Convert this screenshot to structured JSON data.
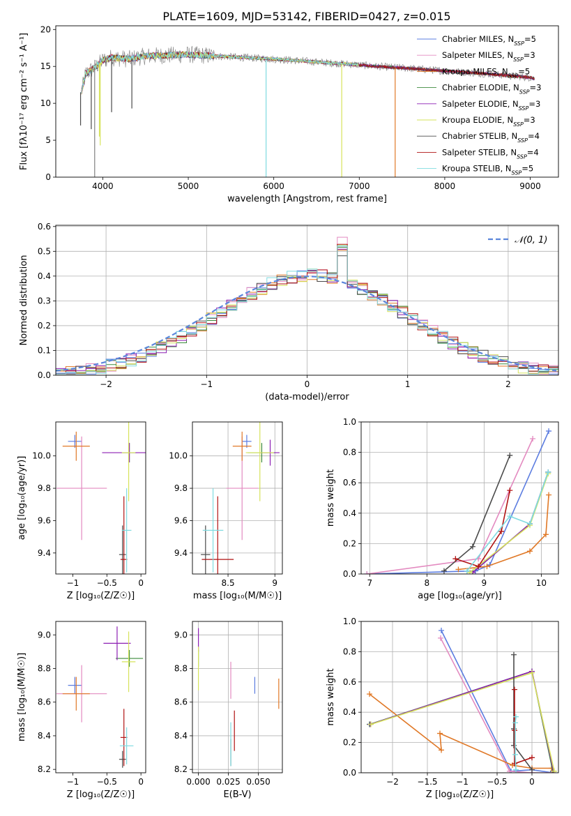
{
  "figure": {
    "title": "PLATE=1609, MJD=53142, FIBERID=0427, z=0.015"
  },
  "colors": {
    "Chabrier MILES": "#5b7ce0",
    "Salpeter MILES": "#e38ac0",
    "Kroupa MILES": "#e07826",
    "Chabrier ELODIE": "#3b8a3b",
    "Salpeter ELODIE": "#8c1fb3",
    "Kroupa ELODIE": "#d6e35a",
    "Chabrier STELIB": "#4a4a4a",
    "Salpeter STELIB": "#b01212",
    "Kroupa STELIB": "#7fdbe0",
    "data": "#7f7f7f",
    "normal": "#5b86db"
  },
  "chart_data": [
    {
      "id": "spectrum",
      "type": "line",
      "xlabel": "wavelength [Angstrom, rest frame]",
      "ylabel": "Flux [f$_{\\lambda}$10$^{-17}$ erg cm$^{-2}$ s$^{-1}$ A$^{-1}$]",
      "ylabel_display": "Flux [fλ10⁻¹⁷ erg cm⁻² s⁻¹ A⁻¹]",
      "xlim": [
        3450,
        9330
      ],
      "ylim": [
        0,
        20.5
      ],
      "xticks": [
        4000,
        5000,
        6000,
        7000,
        8000,
        9000
      ],
      "yticks": [
        0,
        5,
        10,
        15,
        20
      ],
      "legend_position": "top-right",
      "legend": [
        {
          "key": "Chabrier MILES",
          "label": "Chabrier MILES, N",
          "sub": "SSP",
          "tail": "=5"
        },
        {
          "key": "Salpeter MILES",
          "label": "Salpeter MILES, N",
          "sub": "SSP",
          "tail": "=3"
        },
        {
          "key": "Kroupa MILES",
          "label": "Kroupa MILES, N",
          "sub": "SSP",
          "tail": "=5"
        },
        {
          "key": "Chabrier ELODIE",
          "label": "Chabrier ELODIE, N",
          "sub": "SSP",
          "tail": "=3"
        },
        {
          "key": "Salpeter ELODIE",
          "label": "Salpeter ELODIE, N",
          "sub": "SSP",
          "tail": "=3"
        },
        {
          "key": "Kroupa ELODIE",
          "label": "Kroupa ELODIE, N",
          "sub": "SSP",
          "tail": "=3"
        },
        {
          "key": "Chabrier STELIB",
          "label": "Chabrier STELIB, N",
          "sub": "SSP",
          "tail": "=4"
        },
        {
          "key": "Salpeter STELIB",
          "label": "Salpeter STELIB, N",
          "sub": "SSP",
          "tail": "=4"
        },
        {
          "key": "Kroupa STELIB",
          "label": "Kroupa STELIB, N",
          "sub": "SSP",
          "tail": "=5"
        }
      ],
      "continuum": {
        "wavelength": [
          3750,
          3800,
          3900,
          4000,
          4100,
          4300,
          4500,
          5000,
          5500,
          6000,
          6500,
          7000,
          7200,
          7500,
          8000,
          8500,
          9000,
          9050
        ],
        "flux": [
          11.5,
          14.0,
          14.8,
          15.8,
          16.2,
          16.0,
          16.4,
          16.6,
          16.3,
          16.0,
          15.6,
          15.2,
          15.0,
          14.8,
          14.4,
          14.0,
          13.5,
          13.3
        ]
      },
      "dips": [
        {
          "wavelength": 3905,
          "flux": 0,
          "series": "data"
        },
        {
          "wavelength": 5910,
          "flux": 0,
          "series": "Kroupa STELIB"
        },
        {
          "wavelength": 6795,
          "flux": 0,
          "series": "Kroupa ELODIE"
        },
        {
          "wavelength": 7420,
          "flux": 0,
          "series": "Kroupa MILES"
        },
        {
          "wavelength": 3740,
          "flux": 7.0,
          "series": "Chabrier STELIB"
        },
        {
          "wavelength": 3865,
          "flux": 6.5,
          "series": "Chabrier STELIB"
        },
        {
          "wavelength": 3960,
          "flux": 5.5,
          "series": "Kroupa ELODIE"
        },
        {
          "wavelength": 3970,
          "flux": 4.3,
          "series": "Kroupa ELODIE"
        },
        {
          "wavelength": 4340,
          "flux": 9.3,
          "series": "Chabrier STELIB"
        },
        {
          "wavelength": 4103,
          "flux": 8.8,
          "series": "Chabrier STELIB"
        }
      ]
    },
    {
      "id": "residuals",
      "type": "histogram",
      "xlabel": "(data-model)/error",
      "ylabel": "Normed distribution",
      "xlim": [
        -2.5,
        2.5
      ],
      "ylim": [
        0,
        0.605
      ],
      "xticks": [
        -2,
        -1,
        0,
        1,
        2
      ],
      "yticks": [
        0.0,
        0.1,
        0.2,
        0.3,
        0.4,
        0.5,
        0.6
      ],
      "grid": true,
      "legend_position": "top-right",
      "legend": [
        {
          "key": "normal",
          "label": "𝒩(0, 1)"
        }
      ],
      "bin_width": 0.1
    },
    {
      "id": "age_vs_Z",
      "type": "errorbar",
      "xlabel": "Z [log₁₀(Z/Z☉)]",
      "ylabel": "age  [log₁₀(age/yr)]",
      "xlim": [
        -1.25,
        0.07
      ],
      "ylim": [
        9.27,
        10.21
      ],
      "xticks": [
        -1.0,
        -0.5,
        0.0
      ],
      "yticks": [
        9.4,
        9.6,
        9.8,
        10.0
      ],
      "grid": false,
      "points": [
        {
          "series": "Chabrier MILES",
          "x": -0.97,
          "xerr": 0.1,
          "y": 10.09,
          "yerr": 0.04
        },
        {
          "series": "Salpeter MILES",
          "x": -0.87,
          "xerr": 0.37,
          "y": 9.8,
          "yerr": 0.32
        },
        {
          "series": "Kroupa MILES",
          "x": -0.95,
          "xerr": 0.2,
          "y": 10.06,
          "yerr": 0.09
        },
        {
          "series": "Chabrier ELODIE",
          "x": -0.17,
          "xerr": 0.1,
          "y": 10.02,
          "yerr": 0.06
        },
        {
          "series": "Salpeter ELODIE",
          "x": -0.17,
          "xerr": 0.4,
          "y": 10.02,
          "yerr": 0.06
        },
        {
          "series": "Kroupa ELODIE",
          "x": -0.18,
          "xerr": 0.1,
          "y": 10.02,
          "yerr": 0.3
        },
        {
          "series": "Chabrier STELIB",
          "x": -0.27,
          "xerr": 0.05,
          "y": 9.39,
          "yerr": 0.18
        },
        {
          "series": "Salpeter STELIB",
          "x": -0.25,
          "xerr": 0.05,
          "y": 9.36,
          "yerr": 0.39
        },
        {
          "series": "Kroupa STELIB",
          "x": -0.21,
          "xerr": 0.07,
          "y": 9.54,
          "yerr": 0.26
        }
      ]
    },
    {
      "id": "age_vs_mass",
      "type": "errorbar",
      "xlabel": "mass [log₁₀(M/M☉)]",
      "ylabel": "",
      "xlim": [
        8.12,
        9.08
      ],
      "ylim": [
        9.27,
        10.21
      ],
      "xticks": [
        8.5,
        9.0
      ],
      "yticks": [
        9.4,
        9.6,
        9.8,
        10.0
      ],
      "grid": true,
      "points": [
        {
          "series": "Chabrier MILES",
          "x": 8.7,
          "xerr": 0.05,
          "y": 10.09,
          "yerr": 0.04
        },
        {
          "series": "Salpeter MILES",
          "x": 8.65,
          "xerr": 0.17,
          "y": 9.8,
          "yerr": 0.32
        },
        {
          "series": "Kroupa MILES",
          "x": 8.65,
          "xerr": 0.1,
          "y": 10.06,
          "yerr": 0.09
        },
        {
          "series": "Chabrier ELODIE",
          "x": 8.86,
          "xerr": 0.15,
          "y": 10.02,
          "yerr": 0.06
        },
        {
          "series": "Salpeter ELODIE",
          "x": 8.95,
          "xerr": 0.1,
          "y": 10.02,
          "yerr": 0.08
        },
        {
          "series": "Kroupa ELODIE",
          "x": 8.84,
          "xerr": 0.15,
          "y": 10.02,
          "yerr": 0.3
        },
        {
          "series": "Chabrier STELIB",
          "x": 8.26,
          "xerr": 0.05,
          "y": 9.39,
          "yerr": 0.18
        },
        {
          "series": "Salpeter STELIB",
          "x": 8.39,
          "xerr": 0.17,
          "y": 9.36,
          "yerr": 0.39
        },
        {
          "series": "Kroupa STELIB",
          "x": 8.34,
          "xerr": 0.11,
          "y": 9.54,
          "yerr": 0.26
        }
      ]
    },
    {
      "id": "mass_weight_vs_age",
      "type": "line",
      "xlabel": "age  [log₁₀(age/yr)]",
      "ylabel": "mass weight",
      "xlim": [
        6.85,
        10.3
      ],
      "ylim": [
        0,
        1.0
      ],
      "xticks": [
        7,
        8,
        9,
        10
      ],
      "yticks": [
        0.0,
        0.2,
        0.4,
        0.6,
        0.8,
        1.0
      ],
      "grid": true,
      "series": [
        {
          "name": "Chabrier MILES",
          "x": [
            6.95,
            8.85,
            9.1,
            10.13
          ],
          "y": [
            0.0,
            0.02,
            0.06,
            0.94
          ]
        },
        {
          "name": "Salpeter MILES",
          "x": [
            6.95,
            8.9,
            9.85
          ],
          "y": [
            0.0,
            0.1,
            0.89
          ]
        },
        {
          "name": "Kroupa MILES",
          "x": [
            8.55,
            9.05,
            9.8,
            10.08,
            10.13
          ],
          "y": [
            0.03,
            0.05,
            0.15,
            0.26,
            0.52
          ]
        },
        {
          "name": "Chabrier ELODIE",
          "x": [
            8.8,
            9.8,
            10.12
          ],
          "y": [
            0.01,
            0.33,
            0.67
          ]
        },
        {
          "name": "Salpeter ELODIE",
          "x": [
            8.8,
            9.8,
            10.12
          ],
          "y": [
            0.01,
            0.33,
            0.67
          ]
        },
        {
          "name": "Kroupa ELODIE",
          "x": [
            8.75,
            9.8,
            10.12
          ],
          "y": [
            0.01,
            0.32,
            0.66
          ]
        },
        {
          "name": "Chabrier STELIB",
          "x": [
            8.3,
            8.8,
            9.45
          ],
          "y": [
            0.02,
            0.18,
            0.78
          ]
        },
        {
          "name": "Salpeter STELIB",
          "x": [
            8.5,
            8.9,
            9.3,
            9.45
          ],
          "y": [
            0.1,
            0.05,
            0.28,
            0.55
          ]
        },
        {
          "name": "Kroupa STELIB",
          "x": [
            8.7,
            9.45,
            9.8,
            10.12
          ],
          "y": [
            0.02,
            0.38,
            0.33,
            0.67
          ]
        }
      ]
    },
    {
      "id": "mass_vs_Z",
      "type": "errorbar",
      "xlabel": "Z [log₁₀(Z/Z☉)]",
      "ylabel": "mass [log₁₀(M/M☉)]",
      "xlim": [
        -1.25,
        0.07
      ],
      "ylim": [
        8.18,
        9.08
      ],
      "xticks": [
        -1.0,
        -0.5,
        0.0
      ],
      "yticks": [
        8.2,
        8.4,
        8.6,
        8.8,
        9.0
      ],
      "grid": false,
      "points": [
        {
          "series": "Chabrier MILES",
          "x": -0.97,
          "xerr": 0.1,
          "y": 8.7,
          "yerr": 0.05
        },
        {
          "series": "Salpeter MILES",
          "x": -0.87,
          "xerr": 0.37,
          "y": 8.65,
          "yerr": 0.17
        },
        {
          "series": "Kroupa MILES",
          "x": -0.95,
          "xerr": 0.2,
          "y": 8.65,
          "yerr": 0.1
        },
        {
          "series": "Chabrier ELODIE",
          "x": -0.17,
          "xerr": 0.2,
          "y": 8.86,
          "yerr": 0.05
        },
        {
          "series": "Salpeter ELODIE",
          "x": -0.35,
          "xerr": 0.2,
          "y": 8.95,
          "yerr": 0.1
        },
        {
          "series": "Kroupa ELODIE",
          "x": -0.18,
          "xerr": 0.1,
          "y": 8.84,
          "yerr": 0.18
        },
        {
          "series": "Chabrier STELIB",
          "x": -0.27,
          "xerr": 0.05,
          "y": 8.26,
          "yerr": 0.05
        },
        {
          "series": "Salpeter STELIB",
          "x": -0.25,
          "xerr": 0.05,
          "y": 8.39,
          "yerr": 0.17
        },
        {
          "series": "Kroupa STELIB",
          "x": -0.21,
          "xerr": 0.1,
          "y": 8.34,
          "yerr": 0.11
        }
      ]
    },
    {
      "id": "mass_vs_ebv",
      "type": "errorbar",
      "xlabel": "E(B-V)",
      "ylabel": "",
      "xlim": [
        -0.005,
        0.07
      ],
      "ylim": [
        8.18,
        9.08
      ],
      "xticks": [
        0.0,
        0.025,
        0.05
      ],
      "xticklabels": [
        "0.000",
        "0.025",
        "0.050"
      ],
      "yticks": [
        8.2,
        8.4,
        8.6,
        8.8,
        9.0
      ],
      "grid": true,
      "points": [
        {
          "series": "Chabrier MILES",
          "x": 0.047,
          "y": 8.7,
          "yerr": 0.05
        },
        {
          "series": "Salpeter MILES",
          "x": 0.027,
          "y": 8.73,
          "yerr": 0.11
        },
        {
          "series": "Kroupa MILES",
          "x": 0.067,
          "y": 8.65,
          "yerr": 0.09
        },
        {
          "series": "Chabrier ELODIE",
          "x": 0.0,
          "y": 8.86,
          "yerr": 0.05
        },
        {
          "series": "Salpeter ELODIE",
          "x": 0.0,
          "y": 8.97,
          "yerr": 0.07
        },
        {
          "series": "Kroupa ELODIE",
          "x": 0.0,
          "y": 8.8,
          "yerr": 0.13
        },
        {
          "series": "Chabrier STELIB",
          "x": 0.027,
          "y": 8.3,
          "yerr": 0.08
        },
        {
          "series": "Salpeter STELIB",
          "x": 0.03,
          "y": 8.43,
          "yerr": 0.12
        },
        {
          "series": "Kroupa STELIB",
          "x": 0.027,
          "y": 8.35,
          "yerr": 0.13
        }
      ]
    },
    {
      "id": "mass_weight_vs_Z",
      "type": "line",
      "xlabel": "Z [log₁₀(Z/Z☉)]",
      "ylabel": "mass weight",
      "xlim": [
        -2.45,
        0.38
      ],
      "ylim": [
        0,
        1.0
      ],
      "xticks": [
        -2.0,
        -1.5,
        -1.0,
        -0.5,
        0.0
      ],
      "yticks": [
        0.0,
        0.2,
        0.4,
        0.6,
        0.8,
        1.0
      ],
      "grid": true,
      "series": [
        {
          "name": "Chabrier MILES",
          "x": [
            -1.3,
            -0.3,
            0.0,
            0.3
          ],
          "y": [
            0.94,
            0.01,
            0.02,
            0.0
          ]
        },
        {
          "name": "Salpeter MILES",
          "x": [
            -1.31,
            -0.32,
            0.0,
            0.3
          ],
          "y": [
            0.89,
            0.01,
            0.0,
            0.0
          ]
        },
        {
          "name": "Kroupa MILES",
          "x": [
            -2.33,
            -1.3,
            -1.32,
            -0.28,
            0.0,
            0.28,
            0.3
          ],
          "y": [
            0.52,
            0.15,
            0.26,
            0.05,
            0.03,
            0.03,
            0.0
          ]
        },
        {
          "name": "Chabrier ELODIE",
          "x": [
            -2.33,
            0.0,
            0.3
          ],
          "y": [
            0.32,
            0.67,
            0.01
          ]
        },
        {
          "name": "Salpeter ELODIE",
          "x": [
            -2.32,
            0.0,
            0.31
          ],
          "y": [
            0.32,
            0.67,
            0.01
          ]
        },
        {
          "name": "Kroupa ELODIE",
          "x": [
            -2.31,
            0.0,
            0.32
          ],
          "y": [
            0.32,
            0.66,
            0.01
          ]
        },
        {
          "name": "Chabrier STELIB",
          "x": [
            -0.26,
            -0.26,
            -0.26,
            0.0
          ],
          "y": [
            0.78,
            0.29,
            0.18,
            0.02
          ]
        },
        {
          "name": "Salpeter STELIB",
          "x": [
            -0.25,
            -0.25,
            -0.25,
            0.0
          ],
          "y": [
            0.55,
            0.28,
            0.06,
            0.1
          ]
        },
        {
          "name": "Kroupa STELIB",
          "x": [
            -0.23,
            -0.24,
            -0.24,
            -0.23
          ],
          "y": [
            0.37,
            0.33,
            0.12,
            0.02
          ]
        }
      ]
    }
  ]
}
